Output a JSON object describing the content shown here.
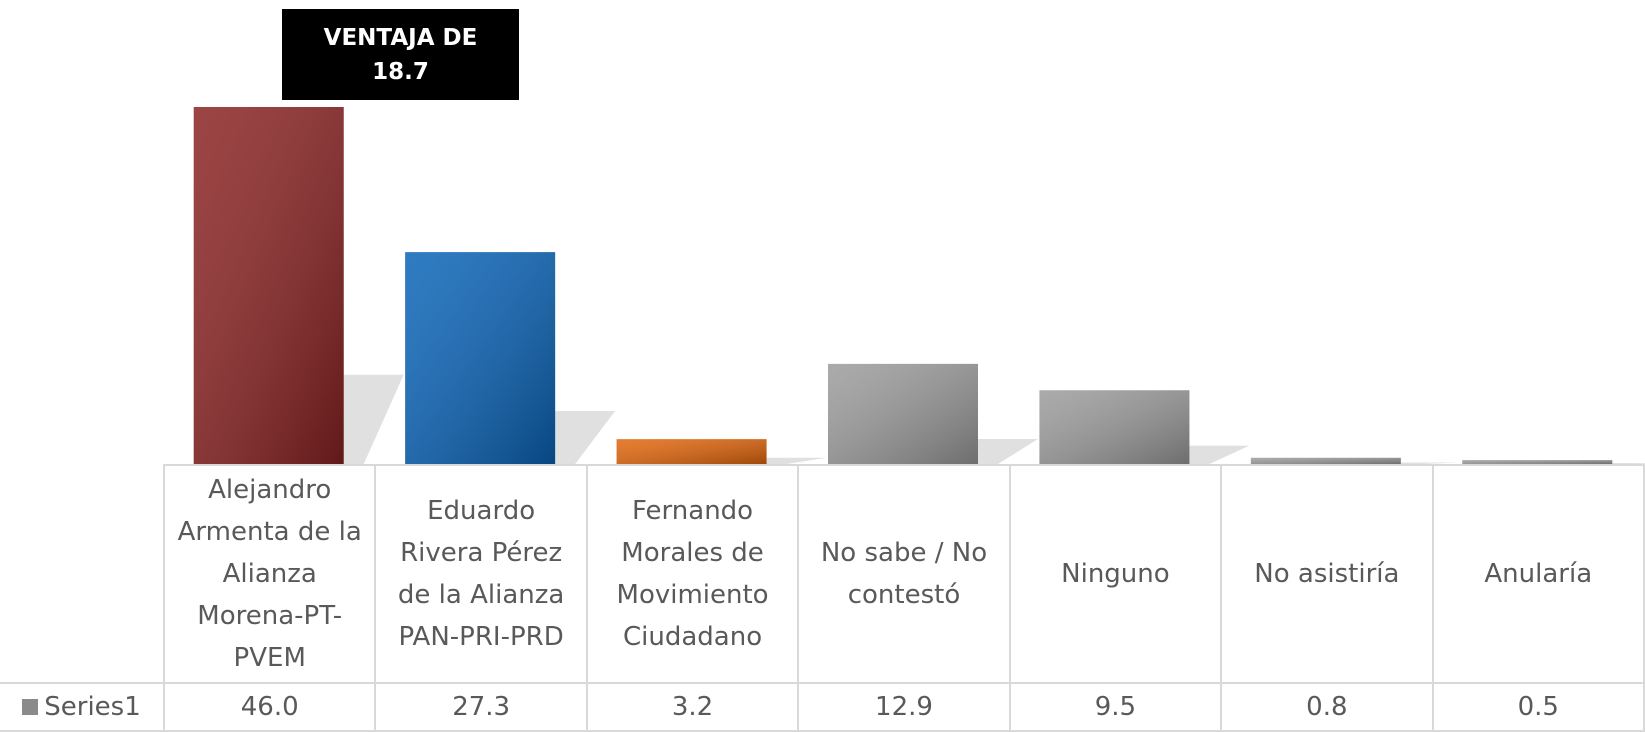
{
  "chart_data": {
    "type": "bar",
    "annotation": "VENTAJA DE 18.7",
    "categories": [
      "Alejandro Armenta de la Alianza Morena-PT-PVEM",
      "Eduardo Rivera Pérez de la Alianza PAN-PRI-PRD",
      "Fernando Morales de Movimiento Ciudadano",
      "No sabe / No contestó",
      "Ninguno",
      "No asistiría",
      "Anularía"
    ],
    "series": [
      {
        "name": "Series1",
        "color": "#8a8a8a",
        "colors": [
          "#8b2323",
          "#0a64b8",
          "#e2660c",
          "#9c9c9c",
          "#9c9c9c",
          "#9c9c9c",
          "#9c9c9c"
        ],
        "values": [
          46.0,
          27.3,
          3.2,
          12.9,
          9.5,
          0.8,
          0.5
        ],
        "value_labels": [
          "46.0",
          "27.3",
          "3.2",
          "12.9",
          "9.5",
          "0.8",
          "0.5"
        ]
      }
    ]
  }
}
